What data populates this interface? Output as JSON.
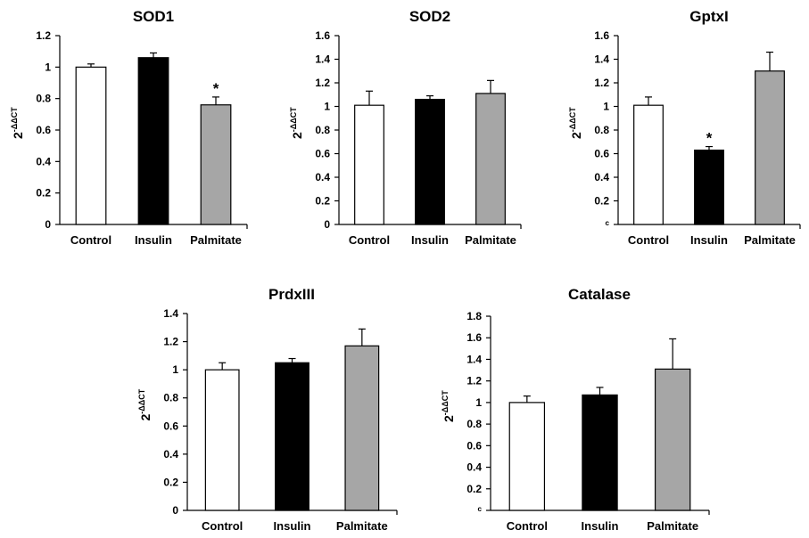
{
  "chart_data": [
    {
      "type": "bar",
      "title": "SOD1",
      "categories": [
        "Control",
        "Insulin",
        "Palmitate"
      ],
      "values": [
        1.0,
        1.06,
        0.76
      ],
      "errors": [
        0.02,
        0.03,
        0.05
      ],
      "significant": [
        false,
        false,
        true
      ],
      "ylim": [
        0,
        1.2
      ],
      "yticks": [
        "0",
        "0.2",
        "0.4",
        "0.6",
        "0.8",
        "1",
        "1.2"
      ],
      "ylabel": "2",
      "ylabel_sup": "-ΔΔCT",
      "colors": [
        "#ffffff",
        "#000000",
        "#a6a6a6"
      ]
    },
    {
      "type": "bar",
      "title": "SOD2",
      "categories": [
        "Control",
        "Insulin",
        "Palmitate"
      ],
      "values": [
        1.01,
        1.06,
        1.11
      ],
      "errors": [
        0.12,
        0.03,
        0.11
      ],
      "significant": [
        false,
        false,
        false
      ],
      "ylim": [
        0,
        1.6
      ],
      "yticks": [
        "0",
        "0.2",
        "0.4",
        "0.6",
        "0.8",
        "1",
        "1.2",
        "1.4",
        "1.6"
      ],
      "ylabel": "2",
      "ylabel_sup": "-ΔΔCT",
      "colors": [
        "#ffffff",
        "#000000",
        "#a6a6a6"
      ]
    },
    {
      "type": "bar",
      "title": "GptxI",
      "categories": [
        "Control",
        "Insulin",
        "Palmitate"
      ],
      "values": [
        1.01,
        0.63,
        1.3
      ],
      "errors": [
        0.07,
        0.03,
        0.16
      ],
      "significant": [
        false,
        true,
        false
      ],
      "ylim": [
        0,
        1.6
      ],
      "yticks": [
        "ᶜ",
        "0.2",
        "0.4",
        "0.6",
        "0.8",
        "1",
        "1.2",
        "1.4",
        "1.6"
      ],
      "ylabel": "2",
      "ylabel_sup": "-ΔΔCT",
      "colors": [
        "#ffffff",
        "#000000",
        "#a6a6a6"
      ]
    },
    {
      "type": "bar",
      "title": "PrdxIII",
      "categories": [
        "Control",
        "Insulin",
        "Palmitate"
      ],
      "values": [
        1.0,
        1.05,
        1.17
      ],
      "errors": [
        0.05,
        0.03,
        0.12
      ],
      "significant": [
        false,
        false,
        false
      ],
      "ylim": [
        0,
        1.4
      ],
      "yticks": [
        "0",
        "0.2",
        "0.4",
        "0.6",
        "0.8",
        "1",
        "1.2",
        "1.4"
      ],
      "ylabel": "2",
      "ylabel_sup": "-ΔΔCT",
      "colors": [
        "#ffffff",
        "#000000",
        "#a6a6a6"
      ]
    },
    {
      "type": "bar",
      "title": "Catalase",
      "categories": [
        "Control",
        "Insulin",
        "Palmitate"
      ],
      "values": [
        1.0,
        1.07,
        1.31
      ],
      "errors": [
        0.06,
        0.07,
        0.28
      ],
      "significant": [
        false,
        false,
        false
      ],
      "ylim": [
        0,
        1.8
      ],
      "yticks": [
        "ᶜ",
        "0.2",
        "0.4",
        "0.6",
        "0.8",
        "1",
        "1.2",
        "1.4",
        "1.6",
        "1.8"
      ],
      "ylabel": "2",
      "ylabel_sup": "-ΔΔCT",
      "colors": [
        "#ffffff",
        "#000000",
        "#a6a6a6"
      ]
    }
  ],
  "significance_marker": "*"
}
